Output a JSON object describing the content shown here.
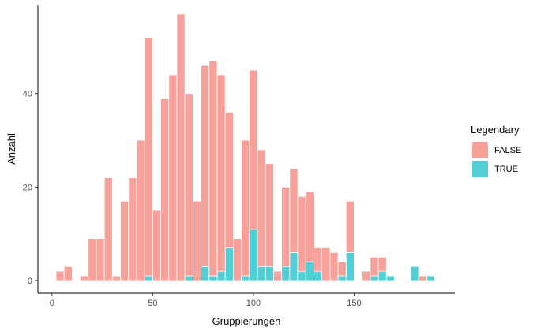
{
  "chart_data": {
    "type": "bar",
    "stacked": true,
    "bin_width": 4,
    "xlabel": "Gruppierungen",
    "ylabel": "Anzahl",
    "xlim": [
      -7,
      200
    ],
    "ylim": [
      -2.7,
      59
    ],
    "x_ticks": [
      0,
      50,
      100,
      150
    ],
    "y_ticks": [
      0,
      20,
      40
    ],
    "grid": false,
    "legend": {
      "title": "Legendary",
      "position": "right"
    },
    "series": [
      {
        "name": "FALSE",
        "color": "#F8A19A",
        "bins": [
          [
            4,
            2
          ],
          [
            8,
            3
          ],
          [
            16,
            1
          ],
          [
            20,
            9
          ],
          [
            24,
            9
          ],
          [
            28,
            22
          ],
          [
            32,
            1
          ],
          [
            36,
            17
          ],
          [
            40,
            22
          ],
          [
            44,
            30
          ],
          [
            48,
            51
          ],
          [
            52,
            15
          ],
          [
            56,
            39
          ],
          [
            60,
            44
          ],
          [
            64,
            57
          ],
          [
            68,
            39
          ],
          [
            72,
            17
          ],
          [
            76,
            43
          ],
          [
            80,
            46
          ],
          [
            84,
            42
          ],
          [
            88,
            29
          ],
          [
            92,
            9
          ],
          [
            96,
            29
          ],
          [
            100,
            34
          ],
          [
            104,
            25
          ],
          [
            108,
            22
          ],
          [
            112,
            2
          ],
          [
            116,
            17
          ],
          [
            120,
            18
          ],
          [
            124,
            16
          ],
          [
            128,
            15
          ],
          [
            132,
            5
          ],
          [
            136,
            7
          ],
          [
            140,
            6
          ],
          [
            144,
            3
          ],
          [
            148,
            11
          ],
          [
            156,
            2
          ],
          [
            160,
            4
          ],
          [
            164,
            3
          ],
          [
            168,
            0
          ],
          [
            172,
            0
          ],
          [
            176,
            0
          ],
          [
            180,
            0
          ],
          [
            184,
            1
          ],
          [
            188,
            0
          ]
        ]
      },
      {
        "name": "TRUE",
        "color": "#4ED0D6",
        "bins": [
          [
            48,
            1
          ],
          [
            68,
            1
          ],
          [
            76,
            3
          ],
          [
            80,
            1
          ],
          [
            84,
            2
          ],
          [
            88,
            7
          ],
          [
            96,
            1
          ],
          [
            100,
            11
          ],
          [
            104,
            3
          ],
          [
            108,
            3
          ],
          [
            116,
            3
          ],
          [
            120,
            6
          ],
          [
            124,
            2
          ],
          [
            128,
            4
          ],
          [
            132,
            2
          ],
          [
            144,
            1
          ],
          [
            148,
            6
          ],
          [
            160,
            1
          ],
          [
            164,
            2
          ],
          [
            168,
            1
          ],
          [
            180,
            3
          ],
          [
            188,
            1
          ]
        ]
      }
    ]
  }
}
